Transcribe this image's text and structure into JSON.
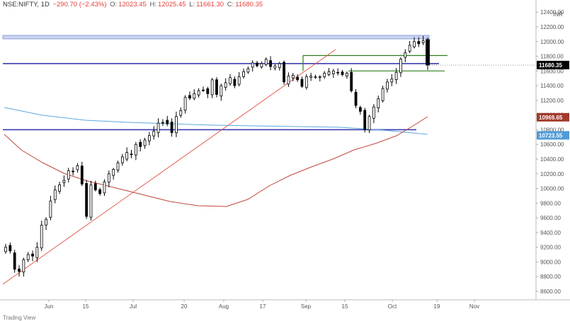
{
  "header": {
    "symbol": "NSE:NIFTY, 1D",
    "change": "−290.70 (−2.43%)",
    "open_label": "O:",
    "open": "12023.45",
    "high_label": "H:",
    "high": "12025.45",
    "low_label": "L:",
    "low": "11661.30",
    "close_label": "C:",
    "close": "11680.35",
    "last_label": "11680.35"
  },
  "footer": {
    "label": "Trading View"
  },
  "price_tags": {
    "last": "11680.35",
    "ma50": "10969.65",
    "ma200": "10723.55"
  },
  "colors": {
    "up": "#ffffff",
    "down": "#000000",
    "ma50": "#c0473b",
    "ma200": "#5aa8e0",
    "trend": "#e05040",
    "support_band": "#3b3bb0",
    "green_line": "#2e7d1e"
  },
  "chart_data": {
    "type": "candlestick",
    "currency": "INR",
    "ylim": [
      8400,
      12400
    ],
    "y_ticks": [
      "12400.00",
      "12200.00",
      "12000.00",
      "11800.00",
      "11600.00",
      "11400.00",
      "11200.00",
      "11000.00",
      "10800.00",
      "10600.00",
      "10400.00",
      "10200.00",
      "10000.00",
      "9800.00",
      "9600.00",
      "9400.00",
      "9200.00",
      "9000.00",
      "8800.00",
      "8600.00"
    ],
    "x_ticks": [
      "Jun",
      "15",
      "Jul",
      "20",
      "Aug",
      "17",
      "Sep",
      "15",
      "Oct",
      "19",
      "Nov"
    ],
    "candles_close": [
      9200,
      9150,
      8900,
      8870,
      9030,
      9100,
      9080,
      9200,
      9500,
      9580,
      9830,
      9980,
      10050,
      10110,
      10240,
      10230,
      10310,
      10060,
      9620,
      10050,
      9980,
      9930,
      10090,
      10200,
      10260,
      10350,
      10430,
      10490,
      10460,
      10600,
      10570,
      10660,
      10720,
      10780,
      10890,
      10900,
      10880,
      10760,
      10980,
      11060,
      11240,
      11230,
      11290,
      11330,
      11340,
      11290,
      11480,
      11280,
      11400,
      11440,
      11510,
      11400,
      11520,
      11590,
      11630,
      11710,
      11670,
      11700,
      11760,
      11660,
      11670,
      11700,
      11450,
      11530,
      11540,
      11480,
      11390,
      11520,
      11530,
      11520,
      11520,
      11570,
      11590,
      11600,
      11580,
      11550,
      11570,
      11330,
      11130,
      11050,
      10800,
      10980,
      11110,
      11220,
      11360,
      11450,
      11490,
      11580,
      11760,
      11850,
      11950,
      12000,
      11970,
      12010,
      11680
    ],
    "series": [
      {
        "name": "",
        "kind": "moving_average_50",
        "last": 10969.65
      },
      {
        "name": "",
        "kind": "moving_average_200",
        "last": 10723.55
      }
    ]
  }
}
